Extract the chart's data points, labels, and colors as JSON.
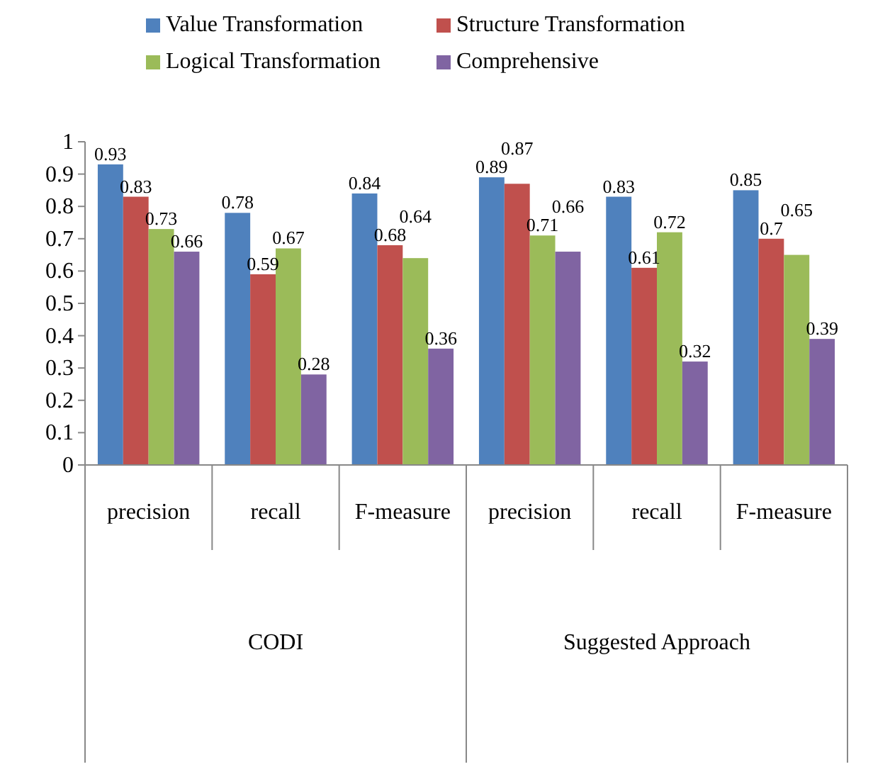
{
  "chart_data": {
    "type": "bar",
    "categories": [
      "precision",
      "recall",
      "F-measure",
      "precision",
      "recall",
      "F-measure"
    ],
    "series": [
      {
        "name": "Value Transformation",
        "color": "#4f81bd",
        "values": [
          0.93,
          0.78,
          0.84,
          0.89,
          0.83,
          0.85
        ]
      },
      {
        "name": "Structure Transformation",
        "color": "#c0504d",
        "values": [
          0.83,
          0.59,
          0.68,
          0.87,
          0.61,
          0.7
        ]
      },
      {
        "name": "Logical Transformation",
        "color": "#9bbb59",
        "values": [
          0.73,
          0.67,
          0.64,
          0.71,
          0.72,
          0.65
        ]
      },
      {
        "name": "Comprehensive",
        "color": "#8064a2",
        "values": [
          0.66,
          0.28,
          0.36,
          0.66,
          0.32,
          0.39
        ]
      }
    ],
    "annotations": [
      "CODI",
      "Suggested Approach"
    ],
    "ylim": [
      0,
      1
    ],
    "yticks": [
      0,
      0.1,
      0.2,
      0.3,
      0.4,
      0.5,
      0.6,
      0.7,
      0.8,
      0.9,
      1
    ],
    "data_labels": true,
    "legend": "top",
    "grid": false
  }
}
